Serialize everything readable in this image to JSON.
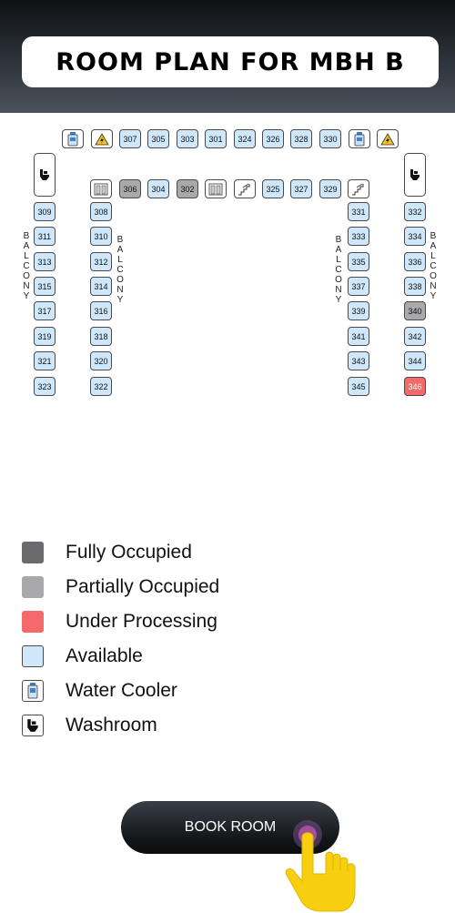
{
  "header": {
    "title": "ROOM PLAN FOR MBH B"
  },
  "plan": {
    "balcony_label": "BALCONY",
    "rooms": [
      {
        "label": "307",
        "status": "available"
      },
      {
        "label": "305",
        "status": "available"
      },
      {
        "label": "303",
        "status": "available"
      },
      {
        "label": "301",
        "status": "available"
      },
      {
        "label": "324",
        "status": "available"
      },
      {
        "label": "326",
        "status": "available"
      },
      {
        "label": "328",
        "status": "available"
      },
      {
        "label": "330",
        "status": "available"
      },
      {
        "label": "306",
        "status": "partially_occupied"
      },
      {
        "label": "304",
        "status": "available"
      },
      {
        "label": "302",
        "status": "partially_occupied"
      },
      {
        "label": "325",
        "status": "available"
      },
      {
        "label": "327",
        "status": "available"
      },
      {
        "label": "329",
        "status": "available"
      },
      {
        "label": "309",
        "status": "available"
      },
      {
        "label": "311",
        "status": "available"
      },
      {
        "label": "313",
        "status": "available"
      },
      {
        "label": "315",
        "status": "available"
      },
      {
        "label": "317",
        "status": "available"
      },
      {
        "label": "319",
        "status": "available"
      },
      {
        "label": "321",
        "status": "available"
      },
      {
        "label": "323",
        "status": "available"
      },
      {
        "label": "308",
        "status": "available"
      },
      {
        "label": "310",
        "status": "available"
      },
      {
        "label": "312",
        "status": "available"
      },
      {
        "label": "314",
        "status": "available"
      },
      {
        "label": "316",
        "status": "available"
      },
      {
        "label": "318",
        "status": "available"
      },
      {
        "label": "320",
        "status": "available"
      },
      {
        "label": "322",
        "status": "available"
      },
      {
        "label": "331",
        "status": "available"
      },
      {
        "label": "333",
        "status": "available"
      },
      {
        "label": "335",
        "status": "available"
      },
      {
        "label": "337",
        "status": "available"
      },
      {
        "label": "339",
        "status": "available"
      },
      {
        "label": "341",
        "status": "available"
      },
      {
        "label": "343",
        "status": "available"
      },
      {
        "label": "345",
        "status": "available"
      },
      {
        "label": "332",
        "status": "available"
      },
      {
        "label": "334",
        "status": "available"
      },
      {
        "label": "336",
        "status": "available"
      },
      {
        "label": "338",
        "status": "available"
      },
      {
        "label": "340",
        "status": "partially_occupied"
      },
      {
        "label": "342",
        "status": "available"
      },
      {
        "label": "344",
        "status": "available"
      },
      {
        "label": "346",
        "status": "under_processing"
      }
    ]
  },
  "legend": {
    "fully_occupied": "Fully Occupied",
    "partially_occupied": "Partially Occupied",
    "under_processing": "Under Processing",
    "available": "Available",
    "water_cooler": "Water Cooler",
    "washroom": "Washroom"
  },
  "colors": {
    "fully_occupied": "#6b6b6d",
    "partially_occupied": "#a9a9ab",
    "under_processing": "#f46a6a",
    "available": "#cfe7fb"
  },
  "icons": {
    "water_cooler": "water-cooler-icon",
    "washroom": "washroom-icon",
    "electrical": "electrical-hazard-icon",
    "lift": "lift-icon",
    "stairs": "stairs-icon",
    "pointer": "tap-hand-icon"
  },
  "book_button": {
    "label": "BOOK ROOM"
  }
}
